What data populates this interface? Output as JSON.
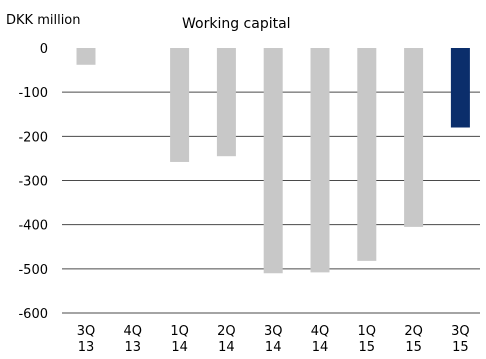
{
  "chart_data": {
    "type": "bar",
    "title": "Working capital",
    "ylabel": "DKK million",
    "xlabel": "",
    "categories": [
      "3Q 13",
      "4Q 13",
      "1Q 14",
      "2Q 14",
      "3Q 14",
      "4Q 14",
      "1Q 15",
      "2Q 15",
      "3Q 15"
    ],
    "category_lines": [
      [
        "3Q",
        "13"
      ],
      [
        "4Q",
        "13"
      ],
      [
        "1Q",
        "14"
      ],
      [
        "2Q",
        "14"
      ],
      [
        "3Q",
        "14"
      ],
      [
        "4Q",
        "14"
      ],
      [
        "1Q",
        "15"
      ],
      [
        "2Q",
        "15"
      ],
      [
        "3Q",
        "15"
      ]
    ],
    "values": [
      -38,
      0,
      -258,
      -245,
      -510,
      -508,
      -482,
      -405,
      -180
    ],
    "highlight_index": 8,
    "ylim": [
      -600,
      0
    ],
    "yticks": [
      0,
      -100,
      -200,
      -300,
      -400,
      -500,
      -600
    ],
    "grid": true,
    "colors": {
      "bar": "#c8c8c8",
      "highlight": "#0b2e6b",
      "grid": "#4a4a4a"
    }
  }
}
